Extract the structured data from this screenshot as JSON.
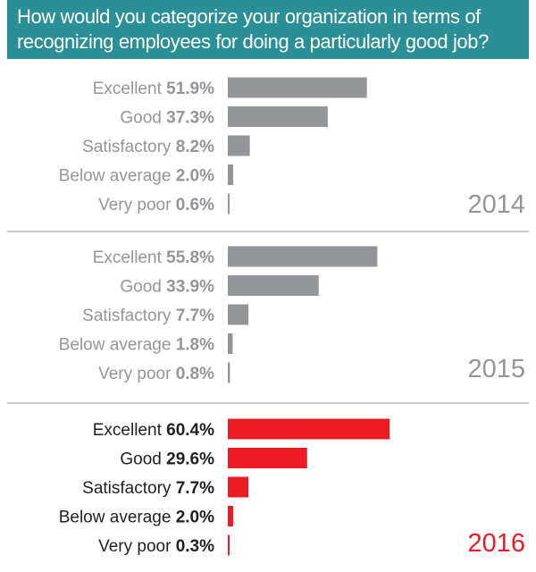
{
  "title": {
    "line1": "How would you categorize your organization in terms of",
    "line2": "recognizing employees for doing a particularly good job?"
  },
  "colors": {
    "title_bg": "#2a8f96",
    "muted": "#939598",
    "highlight": "#ed1c24",
    "divider": "#939598"
  },
  "chart_data": {
    "type": "bar",
    "orientation": "horizontal",
    "title": "How would you categorize your organization in terms of recognizing employees for doing a particularly good job?",
    "categories": [
      "Excellent",
      "Good",
      "Satisfactory",
      "Below average",
      "Very poor"
    ],
    "unit": "%",
    "series": [
      {
        "name": "2014",
        "values": [
          51.9,
          37.3,
          8.2,
          2.0,
          0.6
        ],
        "labels": [
          "51.9%",
          "37.3%",
          "8.2%",
          "2.0%",
          "0.6%"
        ],
        "highlight": false
      },
      {
        "name": "2015",
        "values": [
          55.8,
          33.9,
          7.7,
          1.8,
          0.8
        ],
        "labels": [
          "55.8%",
          "33.9%",
          "7.7%",
          "1.8%",
          "0.8%"
        ],
        "highlight": false
      },
      {
        "name": "2016",
        "values": [
          60.4,
          29.6,
          7.7,
          2.0,
          0.3
        ],
        "labels": [
          "60.4%",
          "29.6%",
          "7.7%",
          "2.0%",
          "0.3%"
        ],
        "highlight": true
      }
    ],
    "xlim": [
      0,
      100
    ],
    "grid": false,
    "legend": "none"
  }
}
